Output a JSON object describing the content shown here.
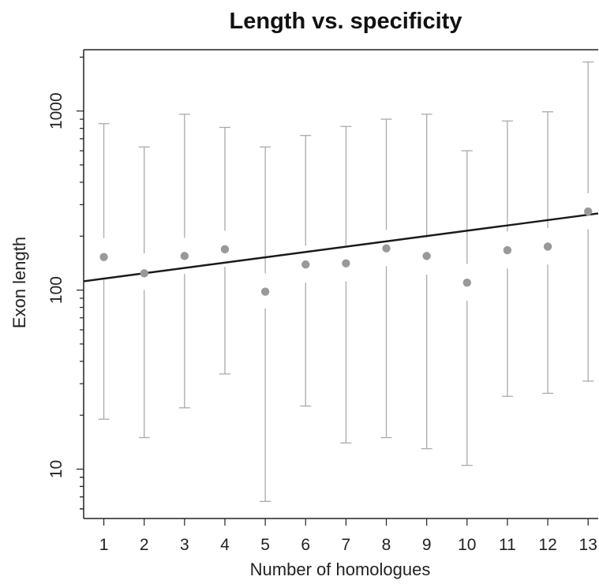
{
  "chart_data": {
    "type": "scatter",
    "title": "Length vs. specificity",
    "xlabel": "Number of homologues",
    "ylabel": "Exon length",
    "xlim": [
      0.5,
      13.25
    ],
    "ylim": [
      5.3,
      2200
    ],
    "y_scale": "log",
    "x_ticks": [
      "1",
      "2",
      "3",
      "4",
      "5",
      "6",
      "7",
      "8",
      "9",
      "10",
      "11",
      "12",
      "13"
    ],
    "y_ticks": [
      "10",
      "100",
      "1000"
    ],
    "grid": false,
    "colors": {
      "points": "#999999",
      "error_bars": "#aaaaaa",
      "trend_line": "#1a1a1a",
      "axes": "#222222"
    },
    "points": [
      {
        "x": 1,
        "y": 153,
        "low": 19,
        "high": 850,
        "q1": 117,
        "q3": 195
      },
      {
        "x": 2,
        "y": 124,
        "low": 15,
        "high": 630,
        "q1": 100,
        "q3": 160
      },
      {
        "x": 3,
        "y": 155,
        "low": 22,
        "high": 960,
        "q1": 123,
        "q3": 196
      },
      {
        "x": 4,
        "y": 169,
        "low": 34,
        "high": 810,
        "q1": 135,
        "q3": 214
      },
      {
        "x": 5,
        "y": 98,
        "low": 6.6,
        "high": 630,
        "q1": 79,
        "q3": 124
      },
      {
        "x": 6,
        "y": 139,
        "low": 22.5,
        "high": 730,
        "q1": 110,
        "q3": 177
      },
      {
        "x": 7,
        "y": 141,
        "low": 14,
        "high": 820,
        "q1": 112,
        "q3": 178
      },
      {
        "x": 8,
        "y": 171,
        "low": 15,
        "high": 900,
        "q1": 136,
        "q3": 217
      },
      {
        "x": 9,
        "y": 155,
        "low": 13,
        "high": 960,
        "q1": 122,
        "q3": 196
      },
      {
        "x": 10,
        "y": 110,
        "low": 10.5,
        "high": 600,
        "q1": 87,
        "q3": 140
      },
      {
        "x": 11,
        "y": 167,
        "low": 25.5,
        "high": 880,
        "q1": 132,
        "q3": 212
      },
      {
        "x": 12,
        "y": 175,
        "low": 26.5,
        "high": 990,
        "q1": 139,
        "q3": 222
      },
      {
        "x": 13,
        "y": 275,
        "low": 31,
        "high": 1880,
        "q1": 218,
        "q3": 348
      }
    ],
    "trend_line": {
      "x": [
        0.5,
        13.25
      ],
      "y": [
        112,
        268
      ]
    }
  }
}
